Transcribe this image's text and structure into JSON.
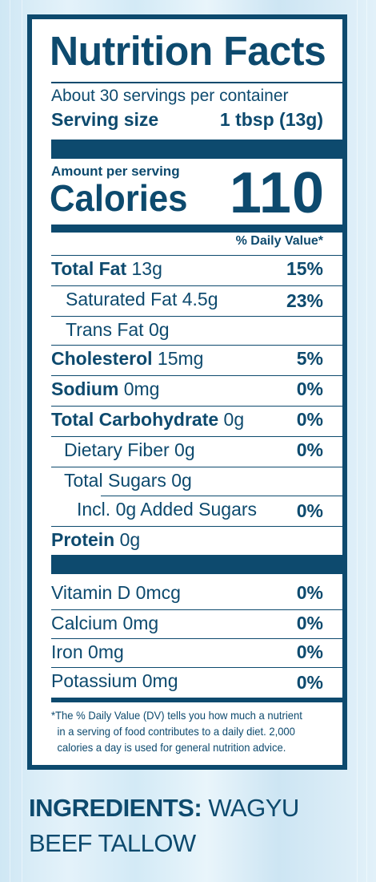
{
  "panel": {
    "title": "Nutrition Facts",
    "servings_per_container": "About 30 servings per container",
    "serving_size_label": "Serving size",
    "serving_size_value": "1 tbsp (13g)",
    "amount_per_serving": "Amount per serving",
    "calories_label": "Calories",
    "calories_value": "110",
    "dv_header": "% Daily Value*",
    "rows": [
      {
        "name": "Total Fat",
        "amount": "13g",
        "dv": "15%"
      },
      {
        "name": "Saturated Fat 4.5g",
        "dv": "23%"
      },
      {
        "name": "Trans Fat 0g"
      },
      {
        "name": "Cholesterol",
        "amount": "15mg",
        "dv": "5%"
      },
      {
        "name": "Sodium",
        "amount": "0mg",
        "dv": "0%"
      },
      {
        "name": "Total Carbohydrate",
        "amount": "0g",
        "dv": "0%"
      },
      {
        "name": "Dietary Fiber 0g",
        "dv": "0%"
      },
      {
        "name": "Total Sugars 0g"
      },
      {
        "name": "Incl. 0g Added Sugars",
        "dv": "0%"
      },
      {
        "name": "Protein",
        "amount": "0g"
      }
    ],
    "vitamins": [
      {
        "name": "Vitamin D 0mcg",
        "dv": "0%"
      },
      {
        "name": "Calcium 0mg",
        "dv": "0%"
      },
      {
        "name": "Iron 0mg",
        "dv": "0%"
      },
      {
        "name": "Potassium 0mg",
        "dv": "0%"
      }
    ],
    "footnote": [
      "*The % Daily Value (DV) tells you how much a nutrient",
      "in a serving of food contributes to a daily diet. 2,000",
      "calories a day is used for general nutrition advice."
    ]
  },
  "ingredients": {
    "label": "INGREDIENTS:",
    "text": "WAGYU BEEF TALLOW"
  }
}
